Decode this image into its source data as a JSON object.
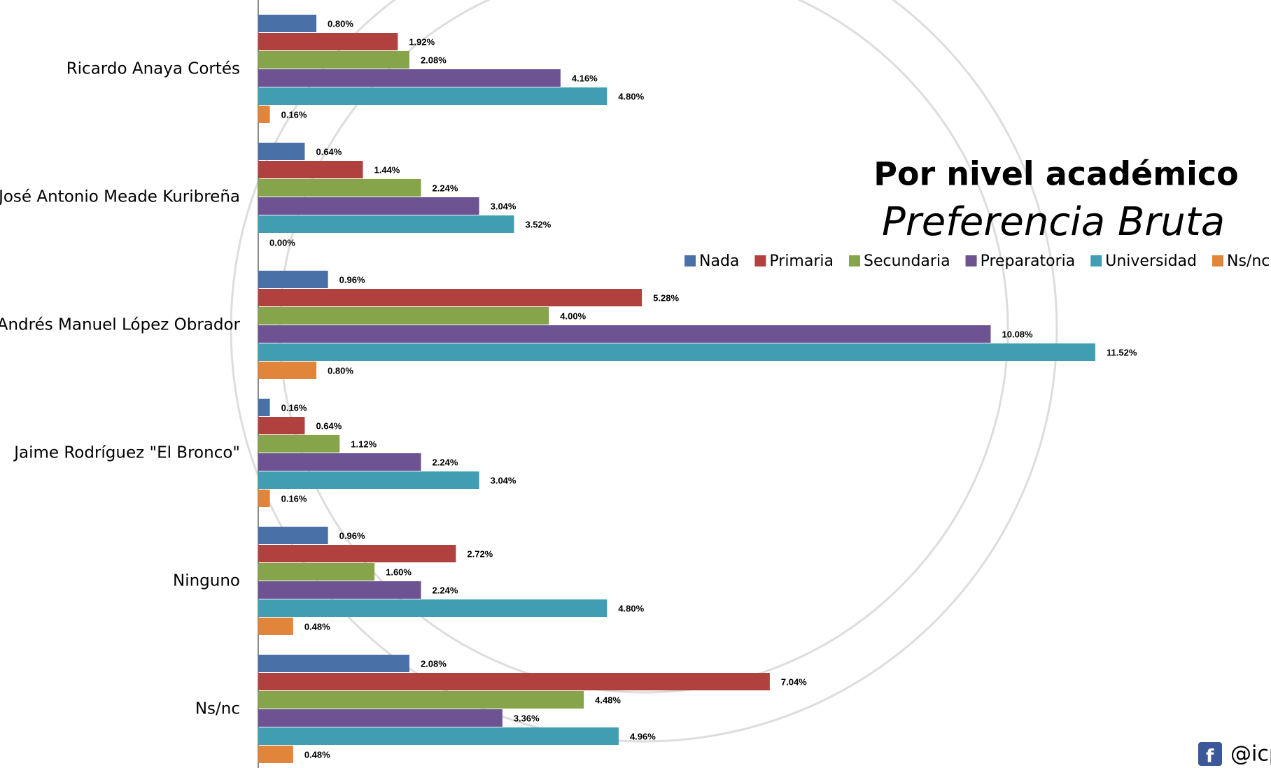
{
  "chart_data": {
    "type": "bar",
    "orientation": "horizontal",
    "title": "Por nivel académico",
    "subtitle": "Preferencia Bruta",
    "footer": "@icp",
    "categories": [
      "Ricardo Anaya Cortés",
      "José Antonio Meade Kuribreña",
      "Andrés Manuel López Obrador",
      "Jaime Rodríguez \"El Bronco\"",
      "Ninguno",
      "Ns/nc"
    ],
    "series": [
      {
        "name": "Nada",
        "color": "#4a70a8",
        "values": [
          0.8,
          0.64,
          0.96,
          0.16,
          0.96,
          2.08
        ],
        "value_labels": [
          "0.80%",
          "0.64%",
          "0.96%",
          "0.16%",
          "0.96%",
          "2.08%"
        ]
      },
      {
        "name": "Primaria",
        "color": "#b0413e",
        "values": [
          1.92,
          1.44,
          5.28,
          0.64,
          2.72,
          7.04
        ],
        "value_labels": [
          "1.92%",
          "1.44%",
          "5.28%",
          "0.64%",
          "2.72%",
          "7.04%"
        ]
      },
      {
        "name": "Secundaria",
        "color": "#86a44a",
        "values": [
          2.08,
          2.24,
          4.0,
          1.12,
          1.6,
          4.48
        ],
        "value_labels": [
          "2.08%",
          "2.24%",
          "4.00%",
          "1.12%",
          "1.60%",
          "4.48%"
        ]
      },
      {
        "name": "Preparatoria",
        "color": "#6d5391",
        "values": [
          4.16,
          3.04,
          10.08,
          2.24,
          2.24,
          3.36
        ],
        "value_labels": [
          "4.16%",
          "3.04%",
          "10.08%",
          "2.24%",
          "2.24%",
          "3.36%"
        ]
      },
      {
        "name": "Universidad",
        "color": "#409db2",
        "values": [
          4.8,
          3.52,
          11.52,
          3.04,
          4.8,
          4.96
        ],
        "value_labels": [
          "4.80%",
          "3.52%",
          "11.52%",
          "3.04%",
          "4.80%",
          "4.96%"
        ]
      },
      {
        "name": "Ns/nc",
        "color": "#e0853a",
        "values": [
          0.16,
          0.0,
          0.8,
          0.16,
          0.48,
          0.48
        ],
        "value_labels": [
          "0.16%",
          "0.00%",
          "0.80%",
          "0.16%",
          "0.48%",
          "0.48%"
        ]
      }
    ]
  }
}
